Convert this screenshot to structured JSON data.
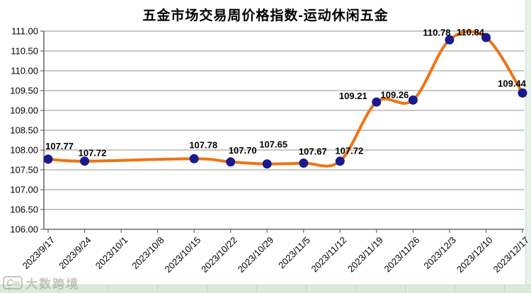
{
  "chart_data": {
    "type": "line",
    "title": "五金市场交易周价格指数-运动休闲五金",
    "categories": [
      "2023/9/17",
      "2023/9/24",
      "2023/10/1",
      "2023/10/8",
      "2023/10/15",
      "2023/10/22",
      "2023/10/29",
      "2023/11/5",
      "2023/11/12",
      "2023/11/19",
      "2023/11/26",
      "2023/12/3",
      "2023/12/10",
      "2023/12/17"
    ],
    "series": [
      {
        "name": "运动休闲五金",
        "values": [
          107.77,
          107.72,
          null,
          null,
          107.78,
          107.7,
          107.65,
          107.67,
          107.72,
          109.21,
          109.26,
          110.78,
          110.84,
          109.44
        ]
      }
    ],
    "data_labels": [
      "107.77",
      "107.72",
      null,
      null,
      "107.78",
      "107.70",
      "107.65",
      "107.67",
      "107.72",
      "109.21",
      "109.26",
      "110.78",
      "110.84",
      "109.44"
    ],
    "xlabel": "",
    "ylabel": "",
    "ylim": [
      106,
      111
    ],
    "ytick_step": 0.5,
    "ytick_decimals": 2,
    "grid": true,
    "legend": "none",
    "smooth_line": true,
    "line_color": "#ED7414",
    "marker_color": "#1A1A8C",
    "gridline_color": "#8F8F8F",
    "axis_color": "#4D4D4D",
    "label_offsets": [
      [
        16,
        -14
      ],
      [
        11,
        -7
      ],
      null,
      null,
      [
        13,
        -15
      ],
      [
        17,
        -12
      ],
      [
        9,
        -23
      ],
      [
        13,
        -12
      ],
      [
        13,
        -10
      ],
      [
        -33,
        -4
      ],
      [
        -26,
        -3
      ],
      [
        -18,
        -6
      ],
      [
        -22,
        -3
      ],
      [
        -15,
        -9
      ]
    ]
  },
  "watermark": {
    "text": "大数跨境",
    "icon": "infinity-logo-icon"
  }
}
